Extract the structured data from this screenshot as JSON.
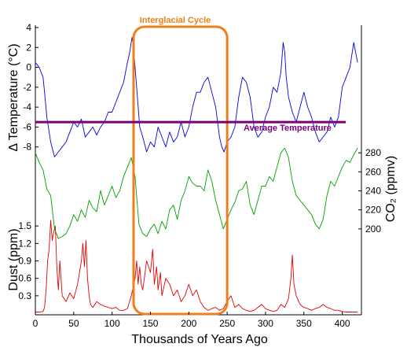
{
  "chart_data": {
    "type": "line",
    "xlabel": "Thousands of Years Ago",
    "xlim": [
      0,
      425
    ],
    "x_ticks": [
      "0",
      "50",
      "100",
      "150",
      "200",
      "250",
      "300",
      "350",
      "400"
    ],
    "panels": [
      {
        "ylabel": "Δ Temperature (°C)",
        "ylim": [
          -10,
          4
        ],
        "y_ticks": [
          "4",
          "2",
          "0",
          "-2",
          "-4",
          "-6",
          "-8"
        ],
        "axis_side": "left",
        "series": [
          {
            "color": "#0000e6",
            "x": [
              0,
              5,
              10,
              12,
              15,
              20,
              25,
              30,
              35,
              40,
              45,
              50,
              55,
              60,
              65,
              70,
              75,
              80,
              85,
              90,
              95,
              100,
              105,
              110,
              115,
              120,
              123,
              126,
              128,
              130,
              133,
              136,
              140,
              145,
              150,
              155,
              160,
              165,
              170,
              175,
              180,
              185,
              190,
              195,
              200,
              205,
              210,
              215,
              220,
              225,
              230,
              235,
              240,
              243,
              246,
              250,
              255,
              260,
              265,
              270,
              275,
              280,
              285,
              290,
              295,
              300,
              305,
              310,
              315,
              320,
              323,
              325,
              327,
              330,
              335,
              340,
              345,
              350,
              355,
              360,
              365,
              370,
              375,
              380,
              385,
              390,
              395,
              400,
              405,
              410,
              415,
              420
            ],
            "y": [
              0.5,
              0,
              -1,
              -2.5,
              -5,
              -7.5,
              -9,
              -8.5,
              -8,
              -7.5,
              -6.5,
              -5.5,
              -6,
              -5.2,
              -7,
              -6.5,
              -6,
              -6.8,
              -6,
              -5.5,
              -4.5,
              -4.5,
              -3.5,
              -2.5,
              -1.5,
              0.5,
              1.5,
              3,
              2,
              0,
              -3,
              -6,
              -7,
              -8.5,
              -7.5,
              -8,
              -6,
              -7,
              -8,
              -6.5,
              -7.5,
              -7,
              -5.5,
              -7,
              -6,
              -4,
              -2.5,
              -2.5,
              -1.5,
              -1,
              -2.5,
              -4,
              -7,
              -8,
              -8.5,
              -7.5,
              -7,
              -6,
              -3,
              -1,
              -1.5,
              -3,
              -6,
              -7,
              -6.5,
              -5,
              -4,
              -2,
              -2.5,
              -0.5,
              2.5,
              1.5,
              -1,
              -3,
              -4.5,
              -5.5,
              -4,
              -2.5,
              -4,
              -5,
              -6.5,
              -7.5,
              -7,
              -6.5,
              -5,
              -6,
              -5,
              -2,
              -1,
              0,
              2.5,
              0.5
            ]
          }
        ]
      },
      {
        "ylabel": "CO₂ (ppmv)",
        "ylim": [
          180,
          300
        ],
        "y_ticks": [
          "280",
          "260",
          "240",
          "220",
          "200"
        ],
        "axis_side": "right",
        "series": [
          {
            "color": "#00a000",
            "x": [
              0,
              5,
              10,
              15,
              20,
              25,
              30,
              35,
              40,
              45,
              50,
              55,
              60,
              65,
              70,
              75,
              80,
              85,
              90,
              95,
              100,
              105,
              110,
              115,
              120,
              125,
              130,
              135,
              140,
              145,
              150,
              155,
              160,
              165,
              170,
              175,
              180,
              185,
              190,
              195,
              200,
              205,
              210,
              215,
              220,
              225,
              230,
              235,
              240,
              245,
              250,
              255,
              260,
              265,
              270,
              275,
              280,
              285,
              290,
              295,
              300,
              305,
              310,
              315,
              320,
              325,
              330,
              335,
              340,
              345,
              350,
              355,
              360,
              365,
              370,
              375,
              380,
              385,
              390,
              395,
              400,
              405,
              410,
              415,
              420
            ],
            "y": [
              280,
              270,
              262,
              242,
              235,
              200,
              190,
              192,
              195,
              203,
              215,
              208,
              220,
              212,
              230,
              222,
              218,
              240,
              225,
              235,
              245,
              233,
              240,
              255,
              265,
              275,
              255,
              205,
              195,
              192,
              200,
              205,
              195,
              208,
              200,
              220,
              225,
              210,
              230,
              240,
              255,
              248,
              245,
              245,
              240,
              262,
              250,
              230,
              215,
              200,
              210,
              220,
              228,
              240,
              242,
              250,
              225,
              215,
              230,
              245,
              245,
              255,
              250,
              265,
              280,
              285,
              275,
              250,
              235,
              230,
              225,
              220,
              215,
              205,
              200,
              210,
              235,
              250,
              245,
              255,
              265,
              272,
              270,
              278,
              285
            ]
          }
        ]
      },
      {
        "ylabel": "Dust (ppm)",
        "ylim": [
          0,
          1.8
        ],
        "y_ticks": [
          "1.5",
          "1.2",
          "0.9",
          "0.6",
          "0.3"
        ],
        "axis_side": "left",
        "series": [
          {
            "color": "#e60000",
            "x": [
              0,
              5,
              10,
              12,
              14,
              16,
              18,
              20,
              22,
              24,
              26,
              28,
              30,
              32,
              35,
              40,
              45,
              50,
              55,
              60,
              62,
              64,
              66,
              68,
              70,
              72,
              75,
              80,
              85,
              90,
              95,
              100,
              105,
              110,
              115,
              120,
              125,
              130,
              132,
              134,
              136,
              138,
              140,
              145,
              150,
              153,
              155,
              158,
              160,
              163,
              165,
              170,
              175,
              180,
              185,
              190,
              195,
              200,
              205,
              210,
              215,
              220,
              225,
              230,
              235,
              240,
              245,
              250,
              255,
              260,
              265,
              270,
              275,
              280,
              285,
              290,
              295,
              300,
              305,
              310,
              315,
              320,
              325,
              330,
              333,
              335,
              337,
              340,
              345,
              350,
              355,
              360,
              365,
              370,
              375,
              380,
              385,
              390,
              395,
              400,
              405,
              410,
              415,
              420
            ],
            "y": [
              0.02,
              0.02,
              0.03,
              0.1,
              0.4,
              0.9,
              1.1,
              1.6,
              1.25,
              1.4,
              1.5,
              0.8,
              0.4,
              0.9,
              0.3,
              0.2,
              0.35,
              0.25,
              0.5,
              0.9,
              1.2,
              0.8,
              1.25,
              0.6,
              0.3,
              0.15,
              0.1,
              0.2,
              0.15,
              0.12,
              0.1,
              0.08,
              0.1,
              0.05,
              0.05,
              0.08,
              0.3,
              0.6,
              0.9,
              0.5,
              0.8,
              0.5,
              0.4,
              0.9,
              0.7,
              1.1,
              0.5,
              0.8,
              0.4,
              0.7,
              0.3,
              0.6,
              0.5,
              0.3,
              0.4,
              0.2,
              0.3,
              0.5,
              0.3,
              0.4,
              0.2,
              0.1,
              0.05,
              0.08,
              0.1,
              0.05,
              0.08,
              0.2,
              0.3,
              0.1,
              0.15,
              0.08,
              0.05,
              0.03,
              0.05,
              0.1,
              0.15,
              0.08,
              0.05,
              0.03,
              0.05,
              0.15,
              0.1,
              0.25,
              0.6,
              1.0,
              0.5,
              0.3,
              0.15,
              0.1,
              0.08,
              0.05,
              0.08,
              0.1,
              0.15,
              0.1,
              0.08,
              0.05,
              0.05,
              0.03,
              0.02,
              0.02,
              0.02,
              0.02
            ]
          }
        ]
      }
    ],
    "annotations": [
      {
        "text": "Interglacial Cycle",
        "color": "#ef7f1a",
        "type": "box",
        "x_range": [
          128,
          250
        ]
      },
      {
        "text": "Average Temperature",
        "color": "#7a007a",
        "type": "hline",
        "panel": 0,
        "y": -5.5
      }
    ]
  }
}
